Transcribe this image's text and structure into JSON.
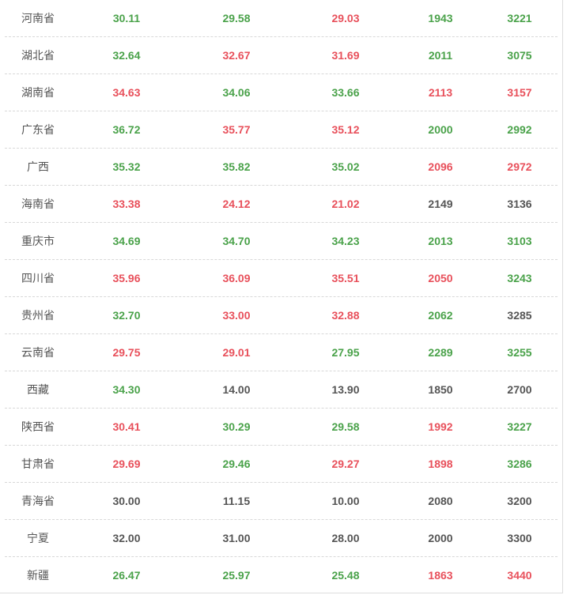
{
  "colors": {
    "g": "#4aa24a",
    "r": "#e8505b",
    "n": "#555555"
  },
  "rows": [
    {
      "name": "河南省",
      "cells": [
        {
          "v": "30.11",
          "c": "g"
        },
        {
          "v": "29.58",
          "c": "g"
        },
        {
          "v": "29.03",
          "c": "r"
        },
        {
          "v": "1943",
          "c": "g"
        },
        {
          "v": "3221",
          "c": "g"
        }
      ]
    },
    {
      "name": "湖北省",
      "cells": [
        {
          "v": "32.64",
          "c": "g"
        },
        {
          "v": "32.67",
          "c": "r"
        },
        {
          "v": "31.69",
          "c": "r"
        },
        {
          "v": "2011",
          "c": "g"
        },
        {
          "v": "3075",
          "c": "g"
        }
      ]
    },
    {
      "name": "湖南省",
      "cells": [
        {
          "v": "34.63",
          "c": "r"
        },
        {
          "v": "34.06",
          "c": "g"
        },
        {
          "v": "33.66",
          "c": "g"
        },
        {
          "v": "2113",
          "c": "r"
        },
        {
          "v": "3157",
          "c": "r"
        }
      ]
    },
    {
      "name": "广东省",
      "cells": [
        {
          "v": "36.72",
          "c": "g"
        },
        {
          "v": "35.77",
          "c": "r"
        },
        {
          "v": "35.12",
          "c": "r"
        },
        {
          "v": "2000",
          "c": "g"
        },
        {
          "v": "2992",
          "c": "g"
        }
      ]
    },
    {
      "name": "广西",
      "cells": [
        {
          "v": "35.32",
          "c": "g"
        },
        {
          "v": "35.82",
          "c": "g"
        },
        {
          "v": "35.02",
          "c": "g"
        },
        {
          "v": "2096",
          "c": "r"
        },
        {
          "v": "2972",
          "c": "r"
        }
      ]
    },
    {
      "name": "海南省",
      "cells": [
        {
          "v": "33.38",
          "c": "r"
        },
        {
          "v": "24.12",
          "c": "r"
        },
        {
          "v": "21.02",
          "c": "r"
        },
        {
          "v": "2149",
          "c": "n"
        },
        {
          "v": "3136",
          "c": "n"
        }
      ]
    },
    {
      "name": "重庆市",
      "cells": [
        {
          "v": "34.69",
          "c": "g"
        },
        {
          "v": "34.70",
          "c": "g"
        },
        {
          "v": "34.23",
          "c": "g"
        },
        {
          "v": "2013",
          "c": "g"
        },
        {
          "v": "3103",
          "c": "g"
        }
      ]
    },
    {
      "name": "四川省",
      "cells": [
        {
          "v": "35.96",
          "c": "r"
        },
        {
          "v": "36.09",
          "c": "r"
        },
        {
          "v": "35.51",
          "c": "r"
        },
        {
          "v": "2050",
          "c": "r"
        },
        {
          "v": "3243",
          "c": "g"
        }
      ]
    },
    {
      "name": "贵州省",
      "cells": [
        {
          "v": "32.70",
          "c": "g"
        },
        {
          "v": "33.00",
          "c": "r"
        },
        {
          "v": "32.88",
          "c": "r"
        },
        {
          "v": "2062",
          "c": "g"
        },
        {
          "v": "3285",
          "c": "n"
        }
      ]
    },
    {
      "name": "云南省",
      "cells": [
        {
          "v": "29.75",
          "c": "r"
        },
        {
          "v": "29.01",
          "c": "r"
        },
        {
          "v": "27.95",
          "c": "g"
        },
        {
          "v": "2289",
          "c": "g"
        },
        {
          "v": "3255",
          "c": "g"
        }
      ]
    },
    {
      "name": "西藏",
      "cells": [
        {
          "v": "34.30",
          "c": "g"
        },
        {
          "v": "14.00",
          "c": "n"
        },
        {
          "v": "13.90",
          "c": "n"
        },
        {
          "v": "1850",
          "c": "n"
        },
        {
          "v": "2700",
          "c": "n"
        }
      ]
    },
    {
      "name": "陕西省",
      "cells": [
        {
          "v": "30.41",
          "c": "r"
        },
        {
          "v": "30.29",
          "c": "g"
        },
        {
          "v": "29.58",
          "c": "g"
        },
        {
          "v": "1992",
          "c": "r"
        },
        {
          "v": "3227",
          "c": "g"
        }
      ]
    },
    {
      "name": "甘肃省",
      "cells": [
        {
          "v": "29.69",
          "c": "r"
        },
        {
          "v": "29.46",
          "c": "g"
        },
        {
          "v": "29.27",
          "c": "r"
        },
        {
          "v": "1898",
          "c": "r"
        },
        {
          "v": "3286",
          "c": "g"
        }
      ]
    },
    {
      "name": "青海省",
      "cells": [
        {
          "v": "30.00",
          "c": "n"
        },
        {
          "v": "11.15",
          "c": "n"
        },
        {
          "v": "10.00",
          "c": "n"
        },
        {
          "v": "2080",
          "c": "n"
        },
        {
          "v": "3200",
          "c": "n"
        }
      ]
    },
    {
      "name": "宁夏",
      "cells": [
        {
          "v": "32.00",
          "c": "n"
        },
        {
          "v": "31.00",
          "c": "n"
        },
        {
          "v": "28.00",
          "c": "n"
        },
        {
          "v": "2000",
          "c": "n"
        },
        {
          "v": "3300",
          "c": "n"
        }
      ]
    },
    {
      "name": "新疆",
      "cells": [
        {
          "v": "26.47",
          "c": "g"
        },
        {
          "v": "25.97",
          "c": "g"
        },
        {
          "v": "25.48",
          "c": "g"
        },
        {
          "v": "1863",
          "c": "r"
        },
        {
          "v": "3440",
          "c": "r"
        }
      ]
    }
  ]
}
